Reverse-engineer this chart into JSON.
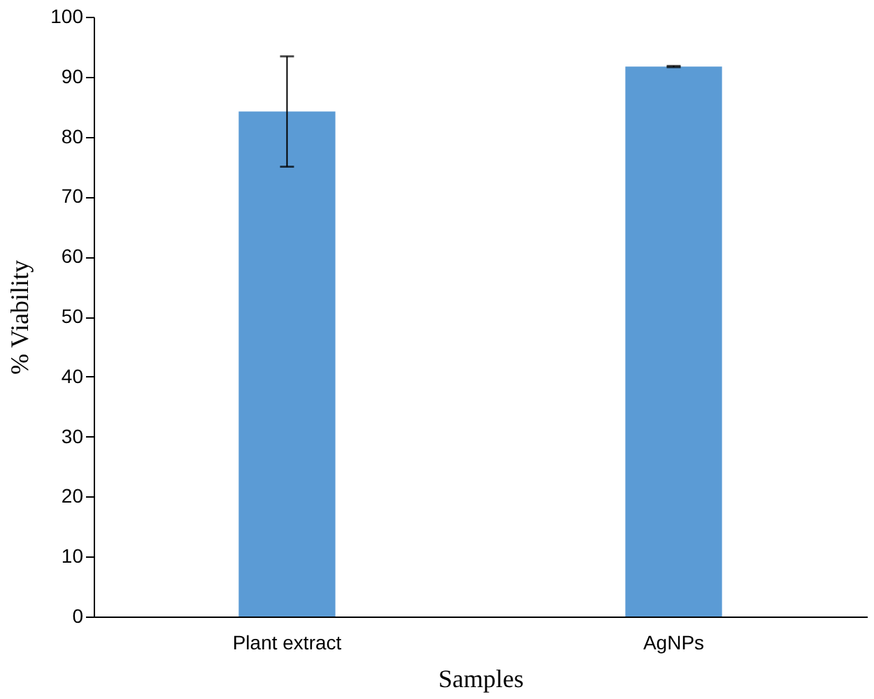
{
  "chart_data": {
    "type": "bar",
    "xlabel": "Samples",
    "ylabel": "% Viability",
    "categories": [
      "Plant extract",
      "AgNPs"
    ],
    "series": [
      {
        "color": "#5b9bd5",
        "values": [
          84.2,
          91.7
        ],
        "errors": [
          9.2,
          0.1
        ]
      }
    ],
    "ylim": [
      0,
      100
    ],
    "yticks": [
      0,
      10,
      20,
      30,
      40,
      50,
      60,
      70,
      80,
      90,
      100
    ],
    "grid": false
  }
}
